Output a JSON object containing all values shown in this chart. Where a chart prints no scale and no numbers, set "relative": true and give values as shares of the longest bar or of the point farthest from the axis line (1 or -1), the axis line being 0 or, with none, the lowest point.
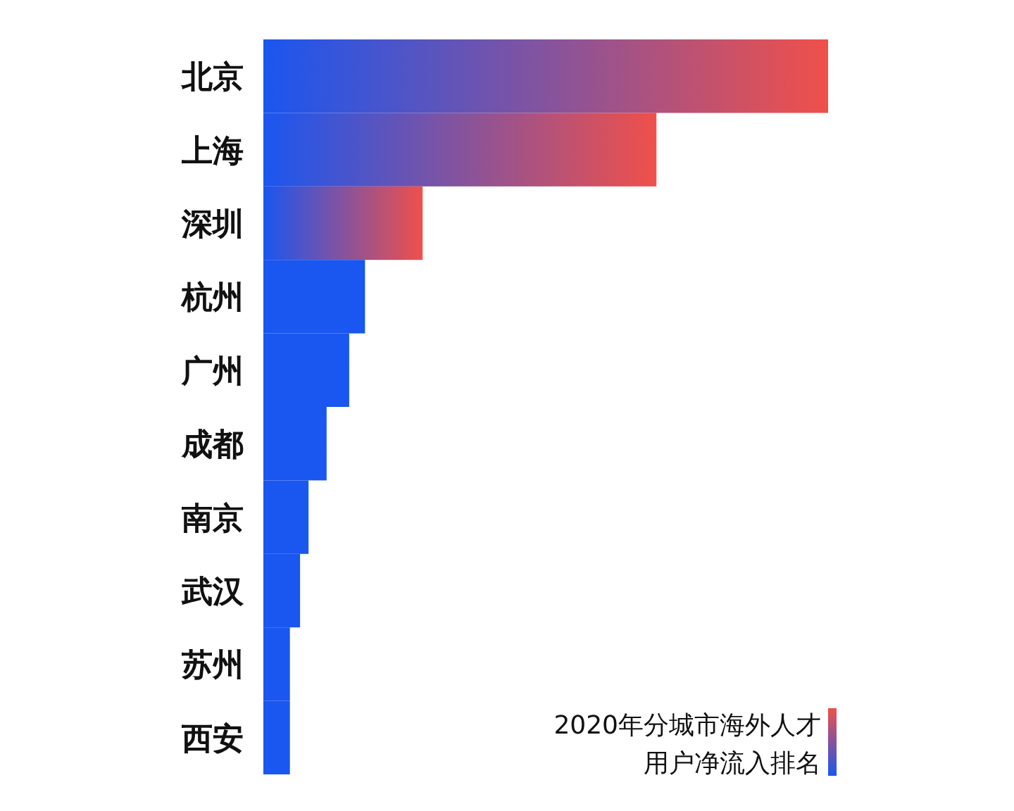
{
  "chart_data": {
    "type": "bar",
    "orientation": "horizontal",
    "relative": true,
    "title": "2020年分城市海外人才用户净流入排名",
    "categories": [
      "北京",
      "上海",
      "深圳",
      "杭州",
      "广州",
      "成都",
      "南京",
      "武汉",
      "苏州",
      "西安"
    ],
    "values": [
      1,
      0.696,
      0.282,
      0.18,
      0.152,
      0.112,
      0.08,
      0.065,
      0.047,
      0.047
    ],
    "colors": [
      "#f0504a",
      "#f0504a",
      "#f0504a",
      "#1a56f0",
      "#1a56f0",
      "#1a56f0",
      "#1a56f0",
      "#1a56f0",
      "#1a56f0",
      "#1a56f0"
    ]
  }
}
